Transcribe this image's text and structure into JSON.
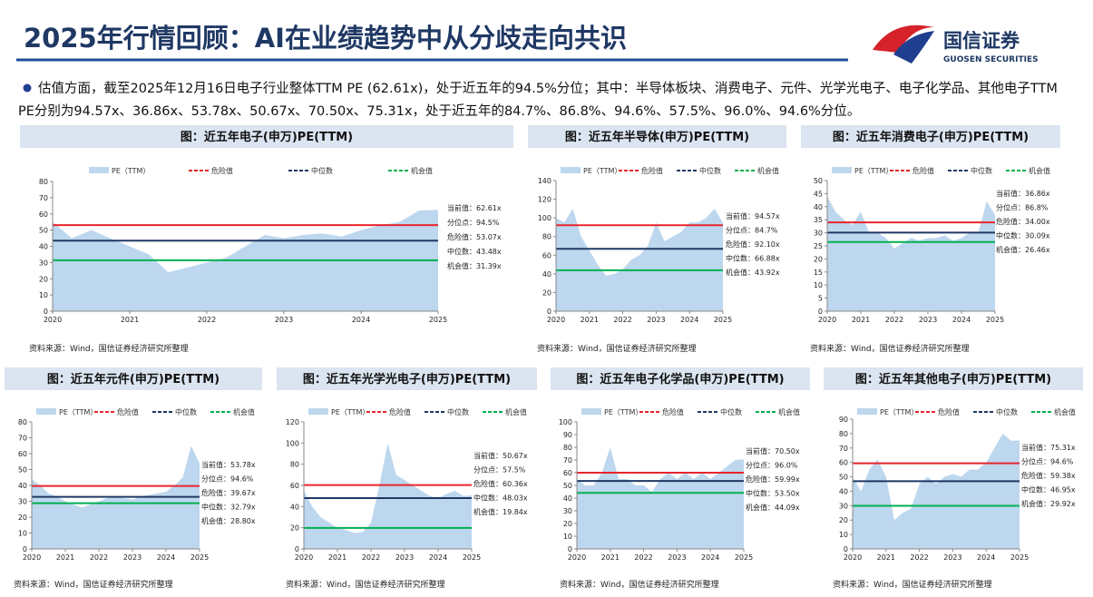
{
  "title": "2025年行情回顾：AI在业绩趋势中从分歧走向共识",
  "logo": {
    "name": "国信证券",
    "english": "GUOSEN SECURITIES"
  },
  "bullet": "估值方面，截至2025年12月16日电子行业整体TTM PE (62.61x)，处于近五年的94.5%分位；其中：半导体板块、消费电子、元件、光学光电子、电子化学品、其他电子TTM PE分别为94.57x、36.86x、53.78x、50.67x、70.50x、75.31x，处于近五年的84.7%、86.8%、94.6%、57.5%、96.0%、94.6%分位。",
  "chart_data": [
    {
      "type": "area",
      "title": "图：近五年电子(申万)PE(TTM)",
      "source": "资料来源：Wind，国信证券经济研究所整理",
      "x": [
        2020,
        2020.25,
        2020.5,
        2020.75,
        2021,
        2021.25,
        2021.5,
        2021.75,
        2022,
        2022.25,
        2022.5,
        2022.75,
        2023,
        2023.25,
        2023.5,
        2023.75,
        2024,
        2024.25,
        2024.5,
        2024.75,
        2025
      ],
      "series": [
        {
          "name": "PE（TTM）",
          "color": "#bdd7ee",
          "values": [
            55,
            45,
            50,
            45,
            40,
            35,
            24,
            27,
            30,
            33,
            40,
            47,
            45,
            47,
            48,
            46,
            50,
            53,
            55,
            62,
            62.61
          ]
        }
      ],
      "lines": [
        {
          "name": "危险值",
          "color": "#e8242c",
          "value": 53.07
        },
        {
          "name": "中位数",
          "color": "#1f3864",
          "value": 43.48
        },
        {
          "name": "机会值",
          "color": "#00b050",
          "value": 31.39
        }
      ],
      "annotations": [
        "当前值：62.61x",
        "分位点：94.5%",
        "危险值：53.07x",
        "中位数：43.48x",
        "机会值：31.39x"
      ],
      "xlim": [
        2020,
        2025
      ],
      "xticks": [
        2020,
        2021,
        2022,
        2023,
        2024,
        2025
      ],
      "ylim": [
        0,
        80
      ],
      "yticks": [
        0,
        10,
        20,
        30,
        40,
        50,
        60,
        70,
        80
      ]
    },
    {
      "type": "area",
      "title": "图：近五年半导体(申万)PE(TTM)",
      "source": "资料来源：Wind，国信证券经济研究所整理",
      "x": [
        2020,
        2020.25,
        2020.5,
        2020.75,
        2021,
        2021.25,
        2021.5,
        2021.75,
        2022,
        2022.25,
        2022.5,
        2022.75,
        2023,
        2023.25,
        2023.5,
        2023.75,
        2024,
        2024.25,
        2024.5,
        2024.75,
        2025
      ],
      "series": [
        {
          "name": "PE（TTM）",
          "color": "#bdd7ee",
          "values": [
            100,
            95,
            110,
            80,
            65,
            50,
            38,
            40,
            45,
            55,
            60,
            70,
            95,
            75,
            80,
            85,
            95,
            95,
            100,
            110,
            94.57
          ]
        }
      ],
      "lines": [
        {
          "name": "危险值",
          "color": "#e8242c",
          "value": 92.1
        },
        {
          "name": "中位数",
          "color": "#1f3864",
          "value": 66.88
        },
        {
          "name": "机会值",
          "color": "#00b050",
          "value": 43.92
        }
      ],
      "annotations": [
        "当前值：94.57x",
        "分位点：84.7%",
        "危险值：92.10x",
        "中位数：66.88x",
        "机会值：43.92x"
      ],
      "xlim": [
        2020,
        2025
      ],
      "xticks": [
        2020,
        2021,
        2022,
        2023,
        2024,
        2025
      ],
      "ylim": [
        0,
        140
      ],
      "yticks": [
        0,
        20,
        40,
        60,
        80,
        100,
        120,
        140
      ]
    },
    {
      "type": "area",
      "title": "图：近五年消费电子(申万)PE(TTM)",
      "source": "资料来源：Wind，国信证券经济研究所整理",
      "x": [
        2020,
        2020.25,
        2020.5,
        2020.75,
        2021,
        2021.25,
        2021.5,
        2021.75,
        2022,
        2022.25,
        2022.5,
        2022.75,
        2023,
        2023.25,
        2023.5,
        2023.75,
        2024,
        2024.25,
        2024.5,
        2024.75,
        2025
      ],
      "series": [
        {
          "name": "PE（TTM）",
          "color": "#bdd7ee",
          "values": [
            44,
            38,
            35,
            33,
            38,
            30,
            30,
            28,
            24,
            26,
            28,
            27,
            28,
            28,
            29,
            27,
            28,
            30,
            30,
            42,
            36.86
          ]
        }
      ],
      "lines": [
        {
          "name": "危险值",
          "color": "#e8242c",
          "value": 34.0
        },
        {
          "name": "中位数",
          "color": "#1f3864",
          "value": 30.09
        },
        {
          "name": "机会值",
          "color": "#00b050",
          "value": 26.46
        }
      ],
      "annotations": [
        "当前值：36.86x",
        "分位点：86.8%",
        "危险值：34.00x",
        "中位数：30.09x",
        "机会值：26.46x"
      ],
      "xlim": [
        2020,
        2025
      ],
      "xticks": [
        2020,
        2021,
        2022,
        2023,
        2024,
        2025
      ],
      "ylim": [
        0,
        50
      ],
      "yticks": [
        0,
        5,
        10,
        15,
        20,
        25,
        30,
        35,
        40,
        45,
        50
      ]
    },
    {
      "type": "area",
      "title": "图：近五年元件(申万)PE(TTM)",
      "source": "资料来源：Wind，国信证券经济研究所整理",
      "x": [
        2020,
        2020.25,
        2020.5,
        2020.75,
        2021,
        2021.25,
        2021.5,
        2021.75,
        2022,
        2022.25,
        2022.5,
        2022.75,
        2023,
        2023.25,
        2023.5,
        2023.75,
        2024,
        2024.25,
        2024.5,
        2024.75,
        2025
      ],
      "series": [
        {
          "name": "PE（TTM）",
          "color": "#bdd7ee",
          "values": [
            44,
            40,
            35,
            33,
            30,
            28,
            26,
            28,
            30,
            32,
            33,
            32,
            31,
            33,
            34,
            35,
            36,
            40,
            45,
            65,
            53.78
          ]
        }
      ],
      "lines": [
        {
          "name": "危险值",
          "color": "#e8242c",
          "value": 39.67
        },
        {
          "name": "中位数",
          "color": "#1f3864",
          "value": 32.79
        },
        {
          "name": "机会值",
          "color": "#00b050",
          "value": 28.8
        }
      ],
      "annotations": [
        "当前值：53.78x",
        "分位点：94.6%",
        "危险值：39.67x",
        "中位数：32.79x",
        "机会值：28.80x"
      ],
      "xlim": [
        2020,
        2025
      ],
      "xticks": [
        2020,
        2021,
        2022,
        2023,
        2024,
        2025
      ],
      "ylim": [
        0,
        80
      ],
      "yticks": [
        0,
        10,
        20,
        30,
        40,
        50,
        60,
        70,
        80
      ]
    },
    {
      "type": "area",
      "title": "图：近五年光学光电子(申万)PE(TTM)",
      "source": "资料来源：Wind，国信证券经济研究所整理",
      "x": [
        2020,
        2020.25,
        2020.5,
        2020.75,
        2021,
        2021.25,
        2021.5,
        2021.75,
        2022,
        2022.25,
        2022.5,
        2022.75,
        2023,
        2023.25,
        2023.5,
        2023.75,
        2024,
        2024.25,
        2024.5,
        2024.75,
        2025
      ],
      "series": [
        {
          "name": "PE（TTM）",
          "color": "#bdd7ee",
          "values": [
            55,
            40,
            30,
            25,
            20,
            18,
            15,
            16,
            25,
            60,
            100,
            70,
            65,
            60,
            55,
            50,
            48,
            52,
            55,
            50,
            50.67
          ]
        }
      ],
      "lines": [
        {
          "name": "危险值",
          "color": "#e8242c",
          "value": 60.36
        },
        {
          "name": "中位数",
          "color": "#1f3864",
          "value": 48.03
        },
        {
          "name": "机会值",
          "color": "#00b050",
          "value": 19.84
        }
      ],
      "annotations": [
        "当前值：50.67x",
        "分位点：57.5%",
        "危险值：60.36x",
        "中位数：48.03x",
        "机会值：19.84x"
      ],
      "xlim": [
        2020,
        2025
      ],
      "xticks": [
        2020,
        2021,
        2022,
        2023,
        2024,
        2025
      ],
      "ylim": [
        0,
        120
      ],
      "yticks": [
        0,
        20,
        40,
        60,
        80,
        100,
        120
      ]
    },
    {
      "type": "area",
      "title": "图：近五年电子化学品(申万)PE(TTM)",
      "source": "资料来源：Wind，国信证券经济研究所整理",
      "x": [
        2020,
        2020.25,
        2020.5,
        2020.75,
        2021,
        2021.25,
        2021.5,
        2021.75,
        2022,
        2022.25,
        2022.5,
        2022.75,
        2023,
        2023.25,
        2023.5,
        2023.75,
        2024,
        2024.25,
        2024.5,
        2024.75,
        2025
      ],
      "series": [
        {
          "name": "PE（TTM）",
          "color": "#bdd7ee",
          "values": [
            55,
            50,
            50,
            60,
            80,
            55,
            55,
            50,
            50,
            45,
            55,
            60,
            55,
            60,
            55,
            60,
            55,
            60,
            65,
            70,
            70.5
          ]
        }
      ],
      "lines": [
        {
          "name": "危险值",
          "color": "#e8242c",
          "value": 59.99
        },
        {
          "name": "中位数",
          "color": "#1f3864",
          "value": 53.5
        },
        {
          "name": "机会值",
          "color": "#00b050",
          "value": 44.09
        }
      ],
      "annotations": [
        "当前值：70.50x",
        "分位点：96.0%",
        "危险值：59.99x",
        "中位数：53.50x",
        "机会值：44.09x"
      ],
      "xlim": [
        2020,
        2025
      ],
      "xticks": [
        2020,
        2021,
        2022,
        2023,
        2024,
        2025
      ],
      "ylim": [
        0,
        100
      ],
      "yticks": [
        0,
        10,
        20,
        30,
        40,
        50,
        60,
        70,
        80,
        90,
        100
      ]
    },
    {
      "type": "area",
      "title": "图：近五年其他电子(申万)PE(TTM)",
      "source": "资料来源：Wind，国信证券经济研究所整理",
      "x": [
        2020,
        2020.25,
        2020.5,
        2020.75,
        2021,
        2021.25,
        2021.5,
        2021.75,
        2022,
        2022.25,
        2022.5,
        2022.75,
        2023,
        2023.25,
        2023.5,
        2023.75,
        2024,
        2024.25,
        2024.5,
        2024.75,
        2025
      ],
      "series": [
        {
          "name": "PE（TTM）",
          "color": "#bdd7ee",
          "values": [
            50,
            40,
            55,
            62,
            50,
            20,
            25,
            28,
            45,
            50,
            45,
            50,
            52,
            50,
            55,
            55,
            60,
            70,
            80,
            75,
            75.31
          ]
        }
      ],
      "lines": [
        {
          "name": "危险值",
          "color": "#e8242c",
          "value": 59.38
        },
        {
          "name": "中位数",
          "color": "#1f3864",
          "value": 46.95
        },
        {
          "name": "机会值",
          "color": "#00b050",
          "value": 29.92
        }
      ],
      "annotations": [
        "当前值：75.31x",
        "分位点：94.6%",
        "危险值：59.38x",
        "中位数：46.95x",
        "机会值：29.92x"
      ],
      "xlim": [
        2020,
        2025
      ],
      "xticks": [
        2020,
        2021,
        2022,
        2023,
        2024,
        2025
      ],
      "ylim": [
        0,
        90
      ],
      "yticks": [
        0,
        10,
        20,
        30,
        40,
        50,
        60,
        70,
        80,
        90
      ]
    }
  ]
}
